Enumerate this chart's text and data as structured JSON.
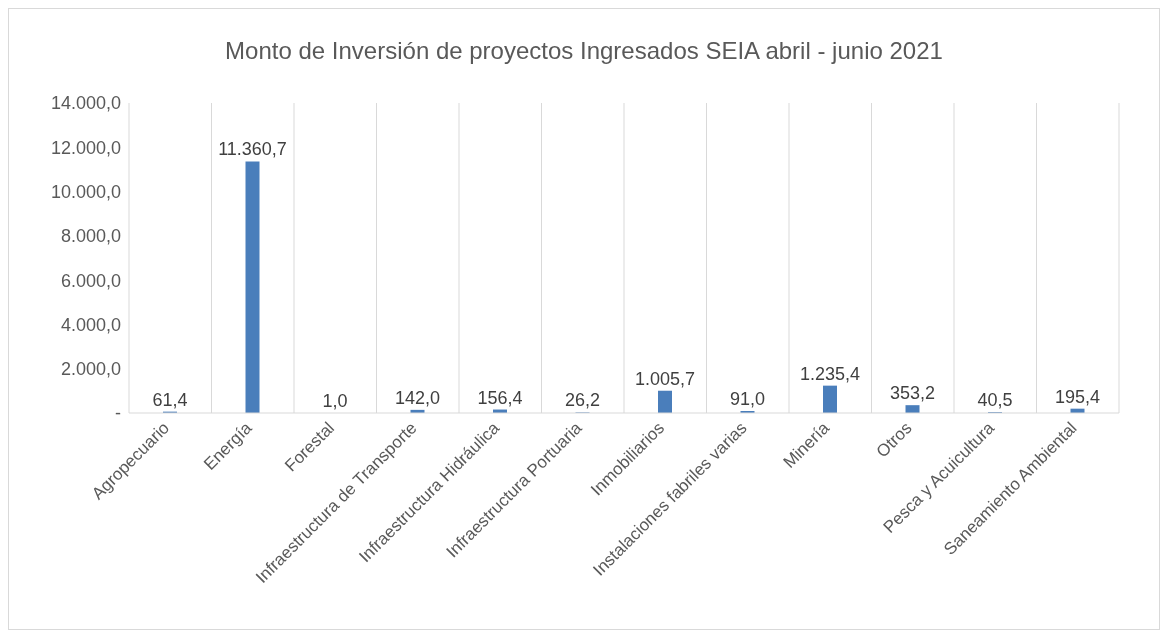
{
  "chart_data": {
    "type": "bar",
    "title": "Monto de Inversión de proyectos Ingresados SEIA abril - junio 2021",
    "categories": [
      "Agropecuario",
      "Energía",
      "Forestal",
      "Infraestructura de Transporte",
      "Infraestructura Hidráulica",
      "Infraestructura Portuaria",
      "Inmobiliarios",
      "Instalaciones fabriles varias",
      "Minería",
      "Otros",
      "Pesca y Acuicultura",
      "Saneamiento Ambiental"
    ],
    "values": [
      61.4,
      11360.7,
      1.0,
      142.0,
      156.4,
      26.2,
      1005.7,
      91.0,
      1235.4,
      353.2,
      40.5,
      195.4
    ],
    "value_labels": [
      "61,4",
      "11.360,7",
      "1,0",
      "142,0",
      "156,4",
      "26,2",
      "1.005,7",
      "91,0",
      "1.235,4",
      "353,2",
      "40,5",
      "195,4"
    ],
    "color": "#4a7ebb",
    "ylim": [
      0,
      14000
    ],
    "yticks": [
      {
        "value": 0,
        "label": "-"
      },
      {
        "value": 2000,
        "label": "2.000,0"
      },
      {
        "value": 4000,
        "label": "4.000,0"
      },
      {
        "value": 6000,
        "label": "6.000,0"
      },
      {
        "value": 8000,
        "label": "8.000,0"
      },
      {
        "value": 10000,
        "label": "10.000,0"
      },
      {
        "value": 12000,
        "label": "12.000,0"
      },
      {
        "value": 14000,
        "label": "14.000,0"
      }
    ],
    "grid": "x"
  }
}
